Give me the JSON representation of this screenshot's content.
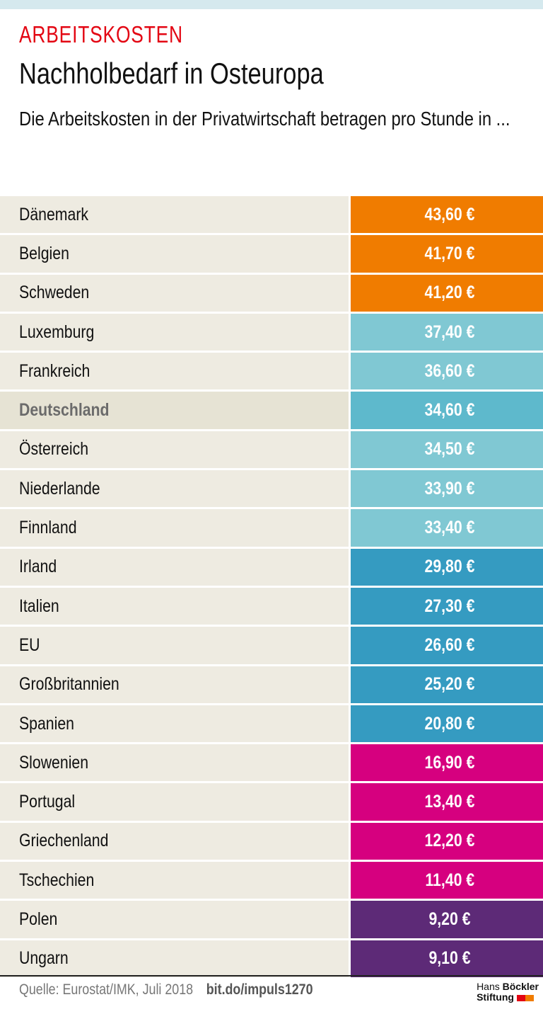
{
  "header": {
    "kicker": "ARBEITSKOSTEN",
    "title": "Nachholbedarf in Osteuropa",
    "subtitle": "Die Arbeitskosten in der Privatwirtschaft betragen pro Stunde in ..."
  },
  "chart_data": {
    "type": "table",
    "unit": "€",
    "highlight": "Deutschland",
    "rows": [
      {
        "country": "Dänemark",
        "value": 43.6,
        "label": "43,60 €",
        "color": "#f07c00"
      },
      {
        "country": "Belgien",
        "value": 41.7,
        "label": "41,70 €",
        "color": "#f07c00"
      },
      {
        "country": "Schweden",
        "value": 41.2,
        "label": "41,20 €",
        "color": "#f07c00"
      },
      {
        "country": "Luxemburg",
        "value": 37.4,
        "label": "37,40 €",
        "color": "#80c8d3"
      },
      {
        "country": "Frankreich",
        "value": 36.6,
        "label": "36,60 €",
        "color": "#80c8d3"
      },
      {
        "country": "Deutschland",
        "value": 34.6,
        "label": "34,60 €",
        "color": "#5eb9cc"
      },
      {
        "country": "Österreich",
        "value": 34.5,
        "label": "34,50 €",
        "color": "#80c8d3"
      },
      {
        "country": "Niederlande",
        "value": 33.9,
        "label": "33,90 €",
        "color": "#80c8d3"
      },
      {
        "country": "Finnland",
        "value": 33.4,
        "label": "33,40 €",
        "color": "#80c8d3"
      },
      {
        "country": "Irland",
        "value": 29.8,
        "label": "29,80 €",
        "color": "#359bc1"
      },
      {
        "country": "Italien",
        "value": 27.3,
        "label": "27,30 €",
        "color": "#359bc1"
      },
      {
        "country": "EU",
        "value": 26.6,
        "label": "26,60 €",
        "color": "#359bc1"
      },
      {
        "country": "Großbritannien",
        "value": 25.2,
        "label": "25,20 €",
        "color": "#359bc1"
      },
      {
        "country": "Spanien",
        "value": 20.8,
        "label": "20,80 €",
        "color": "#359bc1"
      },
      {
        "country": "Slowenien",
        "value": 16.9,
        "label": "16,90 €",
        "color": "#d6007f"
      },
      {
        "country": "Portugal",
        "value": 13.4,
        "label": "13,40 €",
        "color": "#d6007f"
      },
      {
        "country": "Griechenland",
        "value": 12.2,
        "label": "12,20 €",
        "color": "#d6007f"
      },
      {
        "country": "Tschechien",
        "value": 11.4,
        "label": "11,40 €",
        "color": "#d6007f"
      },
      {
        "country": "Polen",
        "value": 9.2,
        "label": "9,20 €",
        "color": "#5d2a77"
      },
      {
        "country": "Ungarn",
        "value": 9.1,
        "label": "9,10 €",
        "color": "#5d2a77"
      }
    ]
  },
  "footer": {
    "source": "Quelle: Eurostat/IMK, Juli 2018",
    "link": "bit.do/impuls1270",
    "logo_line1_a": "Hans",
    "logo_line1_b": "Böckler",
    "logo_line2": "Stiftung"
  }
}
